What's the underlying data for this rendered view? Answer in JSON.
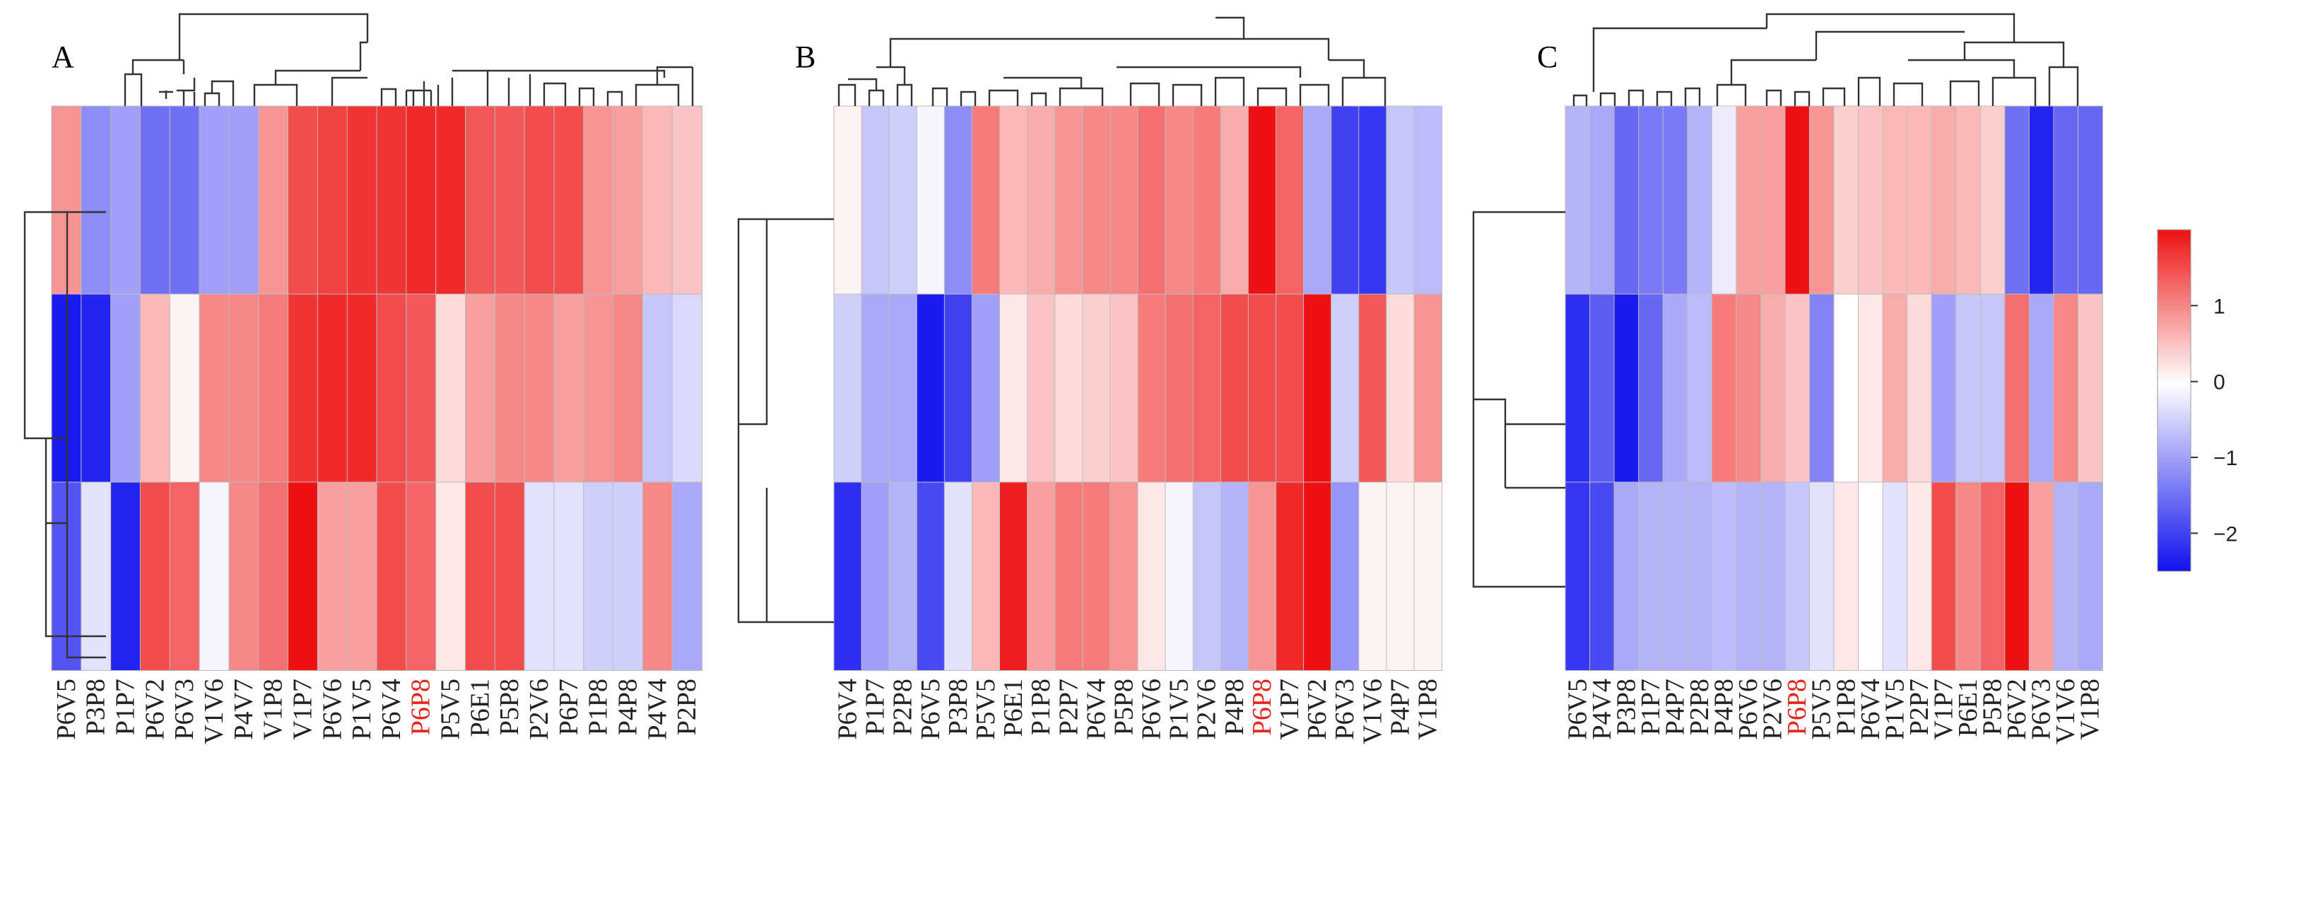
{
  "chart_data": [
    {
      "type": "heatmap",
      "panel": "A",
      "columns": [
        "P6V5",
        "P3P8",
        "P1P7",
        "P6V2",
        "P6V3",
        "V1V6",
        "P4V7",
        "V1P8",
        "V1P7",
        "P6V6",
        "P1V5",
        "P6V4",
        "P6P8",
        "P5V5",
        "P6E1",
        "P5P8",
        "P2V6",
        "P6P7",
        "P1P8",
        "P4P8",
        "P4V4",
        "P2P8"
      ],
      "highlight": "P6P8",
      "values": [
        [
          0.9,
          -1.2,
          -1.0,
          -1.5,
          -1.5,
          -1.0,
          -1.0,
          0.9,
          1.5,
          1.6,
          1.7,
          1.7,
          1.8,
          1.8,
          1.4,
          1.4,
          1.5,
          1.5,
          0.9,
          0.8,
          0.6,
          0.5
        ],
        [
          -2.4,
          -2.3,
          -1.0,
          0.6,
          0.1,
          1.0,
          1.0,
          1.1,
          1.7,
          1.8,
          1.8,
          1.5,
          1.4,
          0.3,
          0.8,
          1.0,
          1.0,
          0.8,
          0.9,
          1.0,
          -0.6,
          -0.4
        ],
        [
          -1.8,
          -0.3,
          -2.3,
          1.5,
          1.3,
          -0.1,
          1.0,
          1.2,
          2.0,
          0.8,
          0.8,
          1.5,
          1.3,
          0.2,
          1.5,
          1.5,
          -0.3,
          -0.3,
          -0.5,
          -0.5,
          1.0,
          -0.9
        ]
      ],
      "colorbar": {
        "ticks": [
          "1",
          "0",
          "−1",
          "−2"
        ],
        "range": [
          -2.5,
          2.0
        ]
      }
    },
    {
      "type": "heatmap",
      "panel": "B",
      "columns": [
        "P6V4",
        "P1P7",
        "P2P8",
        "P6V5",
        "P3P8",
        "P5V5",
        "P6E1",
        "P1P8",
        "P2P7",
        "P6V4",
        "P5P8",
        "P6V6",
        "P1V5",
        "P2V6",
        "P4P8",
        "P6P8",
        "V1P7",
        "P6V2",
        "P6V3",
        "V1V6",
        "P4P7",
        "V1P8"
      ],
      "highlight": "P6P8",
      "values": [
        [
          0.1,
          -0.6,
          -0.5,
          -0.1,
          -1.2,
          1.1,
          0.6,
          0.7,
          0.9,
          1.0,
          1.0,
          1.2,
          1.0,
          1.1,
          0.7,
          2.2,
          1.3,
          -0.9,
          -2.0,
          -2.1,
          -0.6,
          -0.7
        ],
        [
          -0.5,
          -0.9,
          -0.9,
          -2.4,
          -2.0,
          -1.0,
          0.2,
          0.5,
          0.3,
          0.4,
          0.5,
          1.1,
          1.2,
          1.3,
          1.5,
          1.5,
          1.5,
          2.0,
          -0.5,
          1.4,
          0.3,
          0.9
        ],
        [
          -2.2,
          -1.0,
          -0.8,
          -1.9,
          -0.3,
          0.6,
          1.9,
          0.8,
          1.1,
          1.1,
          0.9,
          0.2,
          -0.1,
          -0.6,
          -0.8,
          0.9,
          1.8,
          2.0,
          -1.1,
          0.1,
          0.1,
          0.1
        ]
      ],
      "colorbar": {
        "ticks": [
          "1",
          "0",
          "−1",
          "−2"
        ],
        "range": [
          -2.5,
          2.0
        ]
      }
    },
    {
      "type": "heatmap",
      "panel": "C",
      "columns": [
        "P6V5",
        "P4V4",
        "P3P8",
        "P1P7",
        "P4P7",
        "P2P8",
        "P4P8",
        "P6V6",
        "P2V6",
        "P6P8",
        "P5V5",
        "P1P8",
        "P6V4",
        "P1V5",
        "P2P7",
        "V1P7",
        "P6E1",
        "P5P8",
        "P6V2",
        "P6V3",
        "V1V6",
        "V1P8"
      ],
      "highlight": "P6P8",
      "values": [
        [
          -0.8,
          -0.9,
          -1.6,
          -1.4,
          -1.4,
          -0.8,
          -0.2,
          0.8,
          0.8,
          2.0,
          0.9,
          0.4,
          0.5,
          0.6,
          0.6,
          0.7,
          0.6,
          0.4,
          -1.5,
          -2.3,
          -1.6,
          -1.6
        ],
        [
          -2.2,
          -1.7,
          -2.4,
          -1.6,
          -0.9,
          -0.7,
          1.1,
          1.0,
          0.7,
          0.5,
          -1.3,
          0.0,
          0.2,
          0.7,
          0.3,
          -1.0,
          -0.6,
          -0.6,
          1.2,
          -0.9,
          1.0,
          0.5
        ],
        [
          -2.1,
          -1.9,
          -0.9,
          -0.8,
          -0.8,
          -0.8,
          -0.7,
          -0.8,
          -0.8,
          -0.6,
          -0.3,
          0.2,
          0.0,
          -0.3,
          0.2,
          1.5,
          1.0,
          1.3,
          2.0,
          0.8,
          -0.8,
          -0.9
        ]
      ],
      "colorbar": {
        "ticks": [
          "1",
          "0",
          "−1",
          "−2"
        ],
        "range": [
          -2.5,
          2.0
        ]
      }
    }
  ],
  "colors": {
    "high": "#ee1111",
    "mid": "#ffffff",
    "low": "#1111ee",
    "highlight_label": "#e8231c",
    "label": "#222222"
  }
}
